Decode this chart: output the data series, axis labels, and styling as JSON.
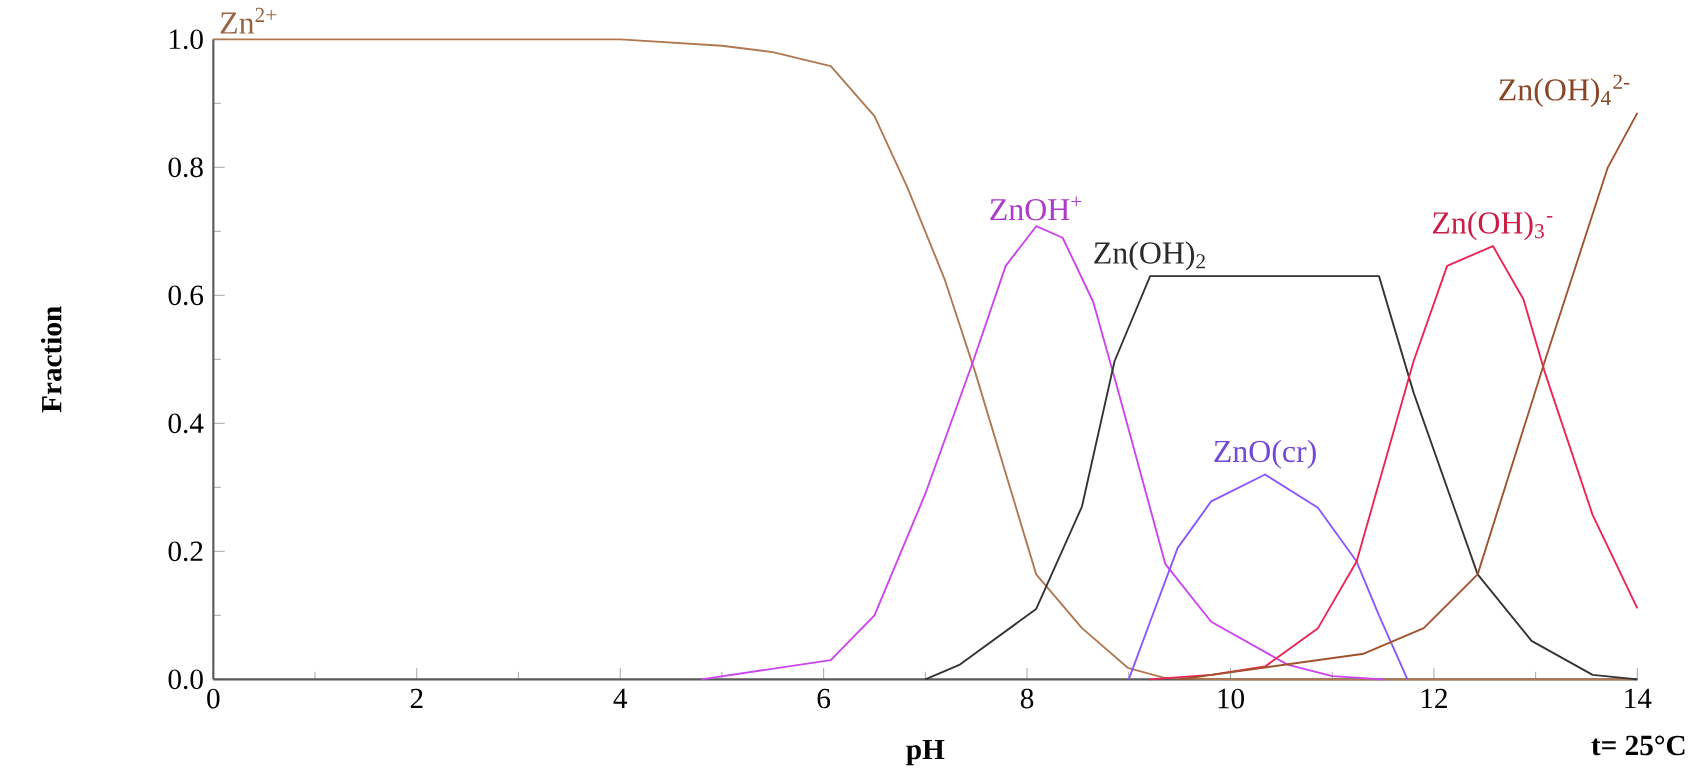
{
  "chart_data": {
    "type": "line",
    "xlabel": "pH",
    "ylabel": "Fraction",
    "xlim": [
      0,
      14
    ],
    "ylim": [
      0,
      1
    ],
    "xticks": [
      0,
      2,
      4,
      6,
      8,
      10,
      12,
      14
    ],
    "yticks": [
      {
        "value": 0,
        "label": "0.0"
      },
      {
        "value": 0.2,
        "label": "0.2"
      },
      {
        "value": 0.4,
        "label": "0.4"
      },
      {
        "value": 0.6,
        "label": "0.6"
      },
      {
        "value": 0.8,
        "label": "0.8"
      },
      {
        "value": 1,
        "label": "1.0"
      }
    ],
    "annotations": [
      "t= 25°C"
    ],
    "series": [
      {
        "name": "Zn$^{2+}$",
        "color": "#b07850",
        "x": [
          0,
          2,
          4,
          5,
          5.5,
          6.07,
          6.5,
          6.82,
          7.19,
          7.49,
          8.09,
          8.54,
          8.99,
          9.36,
          10,
          14
        ],
        "values": [
          1,
          1,
          1,
          0.99,
          0.98,
          0.958,
          0.88,
          0.77,
          0.625,
          0.48,
          0.164,
          0.08,
          0.018,
          0.002,
          0,
          0
        ]
      },
      {
        "name": "ZnOH$^{+}$",
        "color": "#cc44ee",
        "x": [
          4.8,
          6.07,
          6.5,
          7.0,
          7.47,
          7.79,
          8.09,
          8.35,
          8.65,
          8.88,
          9.36,
          9.81,
          10.56,
          11,
          11.5
        ],
        "values": [
          0,
          0.03,
          0.1,
          0.29,
          0.497,
          0.646,
          0.708,
          0.69,
          0.59,
          0.46,
          0.18,
          0.09,
          0.023,
          0.005,
          0
        ]
      },
      {
        "name": "Zn(OH)$_{2}$",
        "color": "#333333",
        "x": [
          7,
          7.34,
          8.09,
          8.54,
          8.86,
          9.21,
          11.46,
          11.8,
          12.43,
          12.96,
          13.56,
          14
        ],
        "values": [
          0,
          0.023,
          0.11,
          0.27,
          0.497,
          0.63,
          0.63,
          0.448,
          0.164,
          0.06,
          0.007,
          0
        ]
      },
      {
        "name": "ZnO(cr)",
        "color": "#8855ff",
        "x": [
          9.0,
          9.21,
          9.48,
          9.81,
          10.34,
          10.86,
          11.24,
          11.46,
          11.74
        ],
        "values": [
          0,
          0.09,
          0.205,
          0.278,
          0.32,
          0.268,
          0.184,
          0.1,
          0
        ]
      },
      {
        "name": "Zn(OH)$_{3}$$^{-}$",
        "color": "#ee2255",
        "x": [
          9.2,
          9.81,
          10.34,
          10.86,
          11.24,
          11.8,
          12.13,
          12.58,
          12.88,
          13.09,
          13.56,
          14
        ],
        "values": [
          0,
          0.007,
          0.02,
          0.08,
          0.184,
          0.497,
          0.646,
          0.677,
          0.594,
          0.48,
          0.257,
          0.111
        ]
      },
      {
        "name": "Zn(OH)$_{4}$$^{2-}$",
        "color": "#a0522d",
        "x": [
          9.5,
          11.31,
          11.9,
          12.43,
          13.09,
          13.71,
          14
        ],
        "values": [
          0,
          0.04,
          0.08,
          0.164,
          0.497,
          0.8,
          0.885
        ]
      }
    ]
  }
}
